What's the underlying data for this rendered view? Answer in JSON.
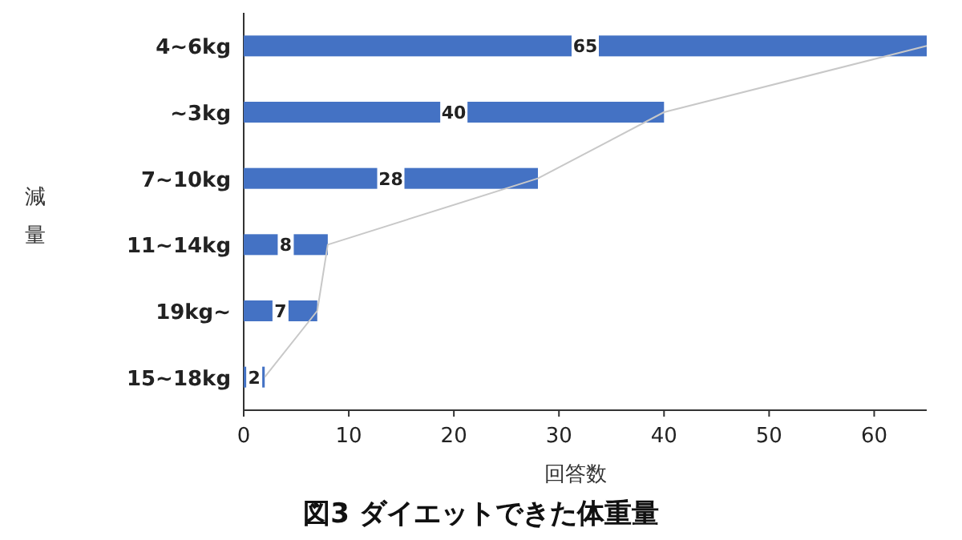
{
  "chart_data": {
    "type": "bar",
    "orientation": "horizontal",
    "title": "図3 ダイエットできた体重量",
    "xlabel": "回答数",
    "ylabel": "減量",
    "categories": [
      "4~6kg",
      "~3kg",
      "7~10kg",
      "11~14kg",
      "19kg~",
      "15~18kg"
    ],
    "series": [
      {
        "type": "bar",
        "color": "#4472c4",
        "values": [
          65,
          40,
          28,
          8,
          7,
          2
        ],
        "value_labels": [
          "65",
          "40",
          "28",
          "8",
          "7",
          "2"
        ]
      },
      {
        "type": "line",
        "color": "#c8c8c8",
        "values": [
          65,
          40,
          28,
          8,
          7,
          2
        ]
      }
    ],
    "xlim": [
      0,
      65
    ],
    "xticks": [
      0,
      10,
      20,
      30,
      40,
      50,
      60
    ],
    "grid": false
  }
}
